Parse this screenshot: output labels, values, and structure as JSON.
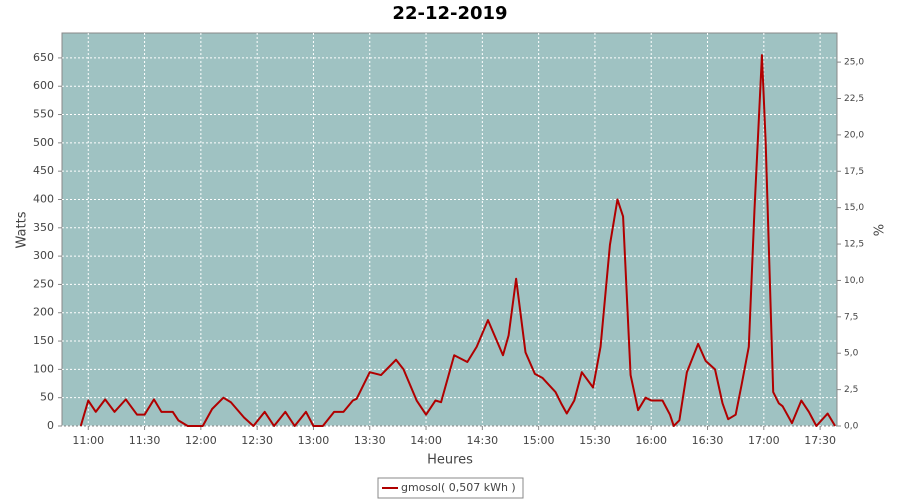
{
  "chart_data": {
    "type": "line",
    "title": "22-12-2019",
    "x_label": "Heures",
    "y_label": "Watts",
    "y2_label": "%",
    "x": [
      "10:56",
      "11:00",
      "11:04",
      "11:09",
      "11:14",
      "11:20",
      "11:26",
      "11:30",
      "11:35",
      "11:39",
      "11:45",
      "11:48",
      "11:53",
      "12:01",
      "12:06",
      "12:12",
      "12:16",
      "12:23",
      "12:28",
      "12:34",
      "12:39",
      "12:45",
      "12:50",
      "12:56",
      "13:00",
      "13:05",
      "13:11",
      "13:16",
      "13:21",
      "13:23",
      "13:30",
      "13:36",
      "13:44",
      "13:48",
      "13:55",
      "14:00",
      "14:05",
      "14:08",
      "14:15",
      "14:22",
      "14:27",
      "14:33",
      "14:41",
      "14:44",
      "14:48",
      "14:53",
      "14:58",
      "15:02",
      "15:09",
      "15:12",
      "15:15",
      "15:19",
      "15:23",
      "15:29",
      "15:33",
      "15:38",
      "15:42",
      "15:45",
      "15:49",
      "15:53",
      "15:57",
      "16:00",
      "16:06",
      "16:10",
      "16:12",
      "16:15",
      "16:19",
      "16:25",
      "16:29",
      "16:34",
      "16:38",
      "16:41",
      "16:45",
      "16:48",
      "16:52",
      "16:55",
      "16:59",
      "17:01",
      "17:05",
      "17:08",
      "17:10",
      "17:15",
      "17:20",
      "17:24",
      "17:28",
      "17:34",
      "17:38"
    ],
    "series": [
      {
        "name": "gmosol( 0,507 kWh )",
        "color": "#b00000",
        "values": [
          0,
          45,
          25,
          47,
          25,
          47,
          20,
          20,
          47,
          25,
          25,
          10,
          0,
          0,
          30,
          50,
          42,
          15,
          0,
          25,
          0,
          25,
          0,
          25,
          0,
          0,
          25,
          25,
          45,
          48,
          95,
          90,
          117,
          100,
          45,
          20,
          45,
          42,
          125,
          113,
          140,
          187,
          125,
          160,
          260,
          130,
          92,
          85,
          60,
          40,
          22,
          45,
          95,
          68,
          140,
          320,
          400,
          370,
          90,
          28,
          50,
          45,
          45,
          20,
          0,
          10,
          95,
          145,
          115,
          100,
          40,
          12,
          20,
          70,
          140,
          380,
          655,
          500,
          60,
          40,
          35,
          5,
          45,
          25,
          0,
          22,
          0
        ]
      }
    ],
    "xlim": [
      "10:46",
      "17:39"
    ],
    "xticks": [
      "11:00",
      "11:30",
      "12:00",
      "12:30",
      "13:00",
      "13:30",
      "14:00",
      "14:30",
      "15:00",
      "15:30",
      "16:00",
      "16:30",
      "17:00",
      "17:30"
    ],
    "ylim": [
      0,
      694
    ],
    "yticks": [
      0,
      50,
      100,
      150,
      200,
      250,
      300,
      350,
      400,
      450,
      500,
      550,
      600,
      650
    ],
    "y2lim": [
      0,
      27
    ],
    "y2ticks": [
      {
        "value": 0,
        "label": "0,0"
      },
      {
        "value": 2.5,
        "label": "2,5"
      },
      {
        "value": 5,
        "label": "5,0"
      },
      {
        "value": 7.5,
        "label": "7,5"
      },
      {
        "value": 10,
        "label": "10,0"
      },
      {
        "value": 12.5,
        "label": "12,5"
      },
      {
        "value": 15,
        "label": "15,0"
      },
      {
        "value": 17.5,
        "label": "17,5"
      },
      {
        "value": 20,
        "label": "20,0"
      },
      {
        "value": 22.5,
        "label": "22,5"
      },
      {
        "value": 25,
        "label": "25,0"
      }
    ],
    "grid": true,
    "plot_background": "#9fc2c2",
    "legend": "bottom"
  }
}
